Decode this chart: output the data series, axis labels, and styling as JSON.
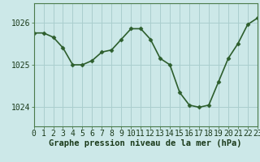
{
  "x": [
    0,
    1,
    2,
    3,
    4,
    5,
    6,
    7,
    8,
    9,
    10,
    11,
    12,
    13,
    14,
    15,
    16,
    17,
    18,
    19,
    20,
    21,
    22,
    23
  ],
  "y": [
    1025.75,
    1025.75,
    1025.65,
    1025.4,
    1025.0,
    1025.0,
    1025.1,
    1025.3,
    1025.35,
    1025.6,
    1025.85,
    1025.85,
    1025.6,
    1025.15,
    1025.0,
    1024.35,
    1024.05,
    1024.0,
    1024.05,
    1024.6,
    1025.15,
    1025.5,
    1025.95,
    1026.1
  ],
  "line_color": "#2d5e2d",
  "marker": "D",
  "marker_size": 2.5,
  "bg_color": "#cce8e8",
  "plot_bg_color": "#cce8e8",
  "grid_color": "#aacece",
  "xlabel": "Graphe pression niveau de la mer (hPa)",
  "xlabel_fontsize": 7.5,
  "ylabel_ticks": [
    1024,
    1025,
    1026
  ],
  "ylim": [
    1023.55,
    1026.45
  ],
  "xlim": [
    0,
    23
  ],
  "tick_fontsize": 7,
  "line_width": 1.2
}
